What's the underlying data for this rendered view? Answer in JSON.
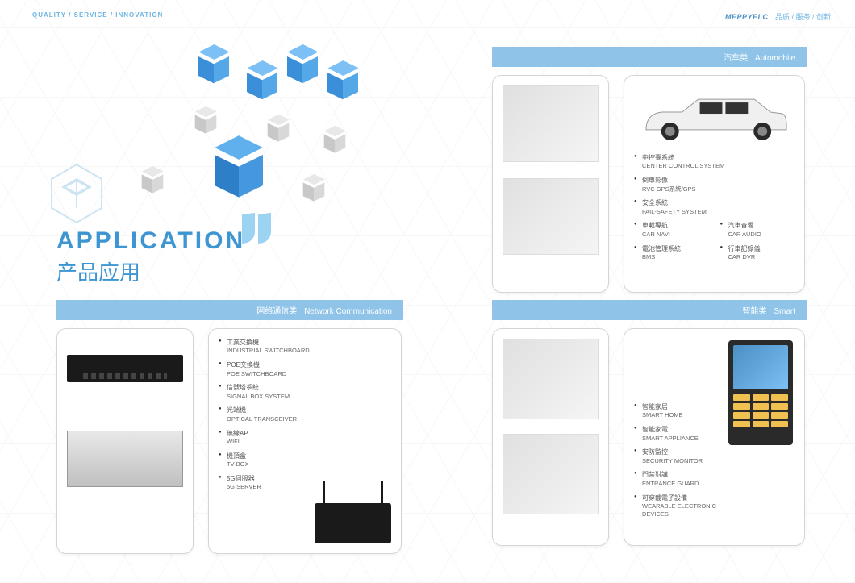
{
  "header": {
    "left_tagline": "QUALITY / SERVICE / INNOVATION",
    "brand": "MEPPYELC",
    "right_tagline": "品质 / 服务 / 创新"
  },
  "title": {
    "en": "APPLICATION",
    "cn": "产品应用"
  },
  "sections": {
    "network": {
      "cn": "网络通信类",
      "en": "Network Communication"
    },
    "automobile": {
      "cn": "汽车类",
      "en": "Automobile"
    },
    "smart": {
      "cn": "智能类",
      "en": "Smart"
    }
  },
  "network_items": [
    {
      "cn": "工業交換機",
      "en": "INDUSTRIAL SWITCHBOARD"
    },
    {
      "cn": "POE交換機",
      "en": "POE SWITCHBOARD"
    },
    {
      "cn": "信號塔系統",
      "en": "SIGNAL BOX SYSTEM"
    },
    {
      "cn": "光端機",
      "en": "OPTICAL TRANSCEIVER"
    },
    {
      "cn": "無線AP",
      "en": "WIFI"
    },
    {
      "cn": "機頂盒",
      "en": "TV-BOX"
    },
    {
      "cn": "5G伺服器",
      "en": "5G SERVER"
    }
  ],
  "auto_items_a": [
    {
      "cn": "中控臺系統",
      "en": "CENTER CONTROL SYSTEM"
    },
    {
      "cn": "倒車影像",
      "en": "RVC GPS系統/GPS"
    },
    {
      "cn": "安全系統",
      "en": "FAIL-SAFETY SYSTEM"
    }
  ],
  "auto_items_b": [
    {
      "cn": "車載導航",
      "en": "CAR NAVI"
    },
    {
      "cn": "電池管理系統",
      "en": "BMS"
    }
  ],
  "auto_items_c": [
    {
      "cn": "汽車音響",
      "en": "CAR AUDIO"
    },
    {
      "cn": "行車記錄儀",
      "en": "CAR DVR"
    }
  ],
  "smart_items": [
    {
      "cn": "智能家居",
      "en": "SMART HOME"
    },
    {
      "cn": "智能家電",
      "en": "SMART APPLIANCE"
    },
    {
      "cn": "安防監控",
      "en": "SECURITY MONITOR"
    },
    {
      "cn": "門禁對講",
      "en": "ENTRANCE GUARD"
    },
    {
      "cn": "可穿戴電子設備",
      "en": "WEARABLE ELECTRONIC DEVICES"
    }
  ],
  "colors": {
    "accent": "#3d96d2",
    "header_bar": "#8fc4e8",
    "cube_blue_top": "#7cc0f5",
    "cube_blue_left": "#3a8fd8",
    "cube_blue_right": "#55a8e8"
  }
}
